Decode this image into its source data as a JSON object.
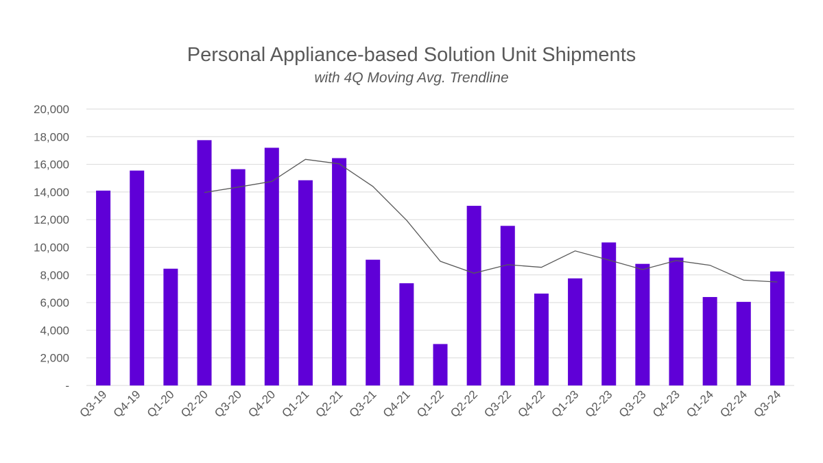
{
  "chart_data": {
    "type": "bar",
    "title": "Personal Appliance-based Solution Unit Shipments",
    "subtitle": "with 4Q Moving Avg. Trendline",
    "xlabel": "",
    "ylabel": "",
    "categories": [
      "Q3-19",
      "Q4-19",
      "Q1-20",
      "Q2-20",
      "Q3-20",
      "Q4-20",
      "Q1-21",
      "Q2-21",
      "Q3-21",
      "Q4-21",
      "Q1-22",
      "Q2-22",
      "Q3-22",
      "Q4-22",
      "Q1-23",
      "Q2-23",
      "Q3-23",
      "Q4-23",
      "Q1-24",
      "Q2-24",
      "Q3-24"
    ],
    "series": [
      {
        "name": "Unit Shipments",
        "kind": "bar",
        "color": "#5F00D7",
        "values": [
          14100,
          15550,
          8450,
          17750,
          15650,
          17200,
          14850,
          16450,
          9100,
          7400,
          3000,
          13000,
          11550,
          6650,
          7750,
          10350,
          8800,
          9250,
          6400,
          6050,
          8250
        ]
      },
      {
        "name": "4Q Moving Avg.",
        "kind": "line",
        "color": "#595959",
        "values": [
          null,
          null,
          null,
          13963,
          14350,
          14763,
          16363,
          16038,
          14400,
          11950,
          8988,
          8125,
          8738,
          8550,
          9738,
          9075,
          8388,
          9038,
          8700,
          7625,
          7488
        ]
      }
    ],
    "ylim": [
      0,
      20000
    ],
    "yticks": [
      0,
      2000,
      4000,
      6000,
      8000,
      10000,
      12000,
      14000,
      16000,
      18000,
      20000
    ],
    "ytick_labels": [
      "-",
      "2,000",
      "4,000",
      "6,000",
      "8,000",
      "10,000",
      "12,000",
      "14,000",
      "16,000",
      "18,000",
      "20,000"
    ],
    "grid": true,
    "legend": "none"
  }
}
